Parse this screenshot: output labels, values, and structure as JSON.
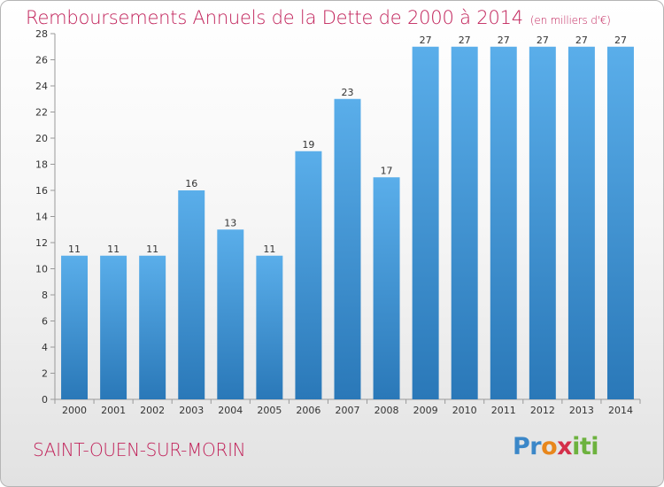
{
  "header": {
    "title": "Remboursements Annuels de la Dette de 2000 à 2014",
    "unit": "(en milliers d'€)"
  },
  "footer": {
    "city": "SAINT-OUEN-SUR-MORIN",
    "logo": "Proxiti"
  },
  "colors": {
    "title": "#c1225a",
    "bar_light": "#5aaeea",
    "bar_dark": "#2a78b8"
  },
  "chart_data": {
    "type": "bar",
    "title": "Remboursements Annuels de la Dette de 2000 à 2014",
    "subtitle": "(en milliers d'€)",
    "xlabel": "",
    "ylabel": "",
    "categories": [
      "2000",
      "2001",
      "2002",
      "2003",
      "2004",
      "2005",
      "2006",
      "2007",
      "2008",
      "2009",
      "2010",
      "2011",
      "2012",
      "2013",
      "2014"
    ],
    "values": [
      11,
      11,
      11,
      16,
      13,
      11,
      19,
      23,
      17,
      27,
      27,
      27,
      27,
      27,
      27
    ],
    "ylim": [
      0,
      28
    ],
    "yticks": [
      0,
      2,
      4,
      6,
      8,
      10,
      12,
      14,
      16,
      18,
      20,
      22,
      24,
      26,
      28
    ],
    "grid": false,
    "legend": "none",
    "data_labels": true
  }
}
